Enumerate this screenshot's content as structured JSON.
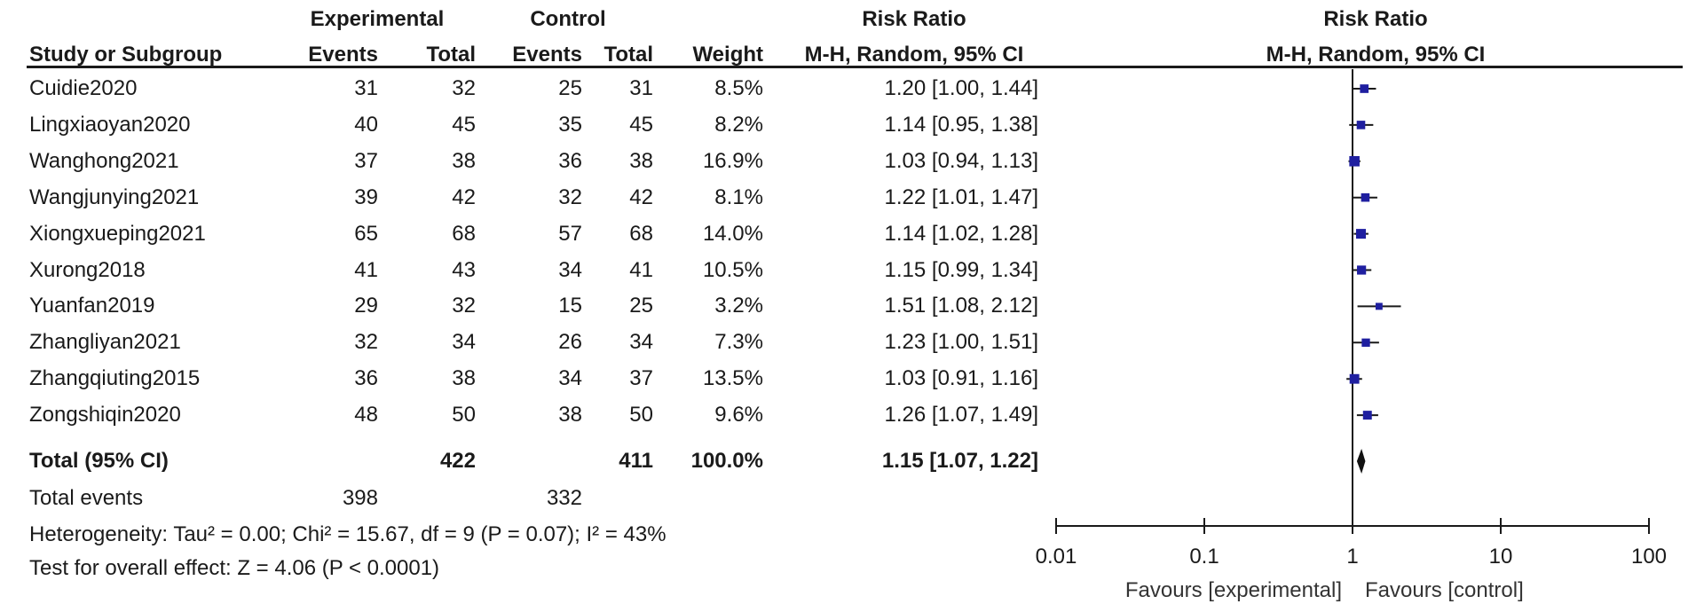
{
  "header": {
    "group1": "Experimental",
    "group2": "Control",
    "rr_table": "Risk Ratio",
    "rr_plot": "Risk Ratio",
    "col_study": "Study or Subgroup",
    "col_events1": "Events",
    "col_total1": "Total",
    "col_events2": "Events",
    "col_total2": "Total",
    "col_weight": "Weight",
    "col_method": "M-H, Random, 95% CI",
    "plot_method": "M-H, Random, 95% CI"
  },
  "studies": [
    {
      "name": "Cuidie2020",
      "e_events": "31",
      "e_total": "32",
      "c_events": "25",
      "c_total": "31",
      "weight": "8.5%",
      "ci_text": "1.20 [1.00, 1.44]"
    },
    {
      "name": "Lingxiaoyan2020",
      "e_events": "40",
      "e_total": "45",
      "c_events": "35",
      "c_total": "45",
      "weight": "8.2%",
      "ci_text": "1.14 [0.95, 1.38]"
    },
    {
      "name": "Wanghong2021",
      "e_events": "37",
      "e_total": "38",
      "c_events": "36",
      "c_total": "38",
      "weight": "16.9%",
      "ci_text": "1.03 [0.94, 1.13]"
    },
    {
      "name": "Wangjunying2021",
      "e_events": "39",
      "e_total": "42",
      "c_events": "32",
      "c_total": "42",
      "weight": "8.1%",
      "ci_text": "1.22 [1.01, 1.47]"
    },
    {
      "name": "Xiongxueping2021",
      "e_events": "65",
      "e_total": "68",
      "c_events": "57",
      "c_total": "68",
      "weight": "14.0%",
      "ci_text": "1.14 [1.02, 1.28]"
    },
    {
      "name": "Xurong2018",
      "e_events": "41",
      "e_total": "43",
      "c_events": "34",
      "c_total": "41",
      "weight": "10.5%",
      "ci_text": "1.15 [0.99, 1.34]"
    },
    {
      "name": "Yuanfan2019",
      "e_events": "29",
      "e_total": "32",
      "c_events": "15",
      "c_total": "25",
      "weight": "3.2%",
      "ci_text": "1.51 [1.08, 2.12]"
    },
    {
      "name": "Zhangliyan2021",
      "e_events": "32",
      "e_total": "34",
      "c_events": "26",
      "c_total": "34",
      "weight": "7.3%",
      "ci_text": "1.23 [1.00, 1.51]"
    },
    {
      "name": "Zhangqiuting2015",
      "e_events": "36",
      "e_total": "38",
      "c_events": "34",
      "c_total": "37",
      "weight": "13.5%",
      "ci_text": "1.03 [0.91, 1.16]"
    },
    {
      "name": "Zongshiqin2020",
      "e_events": "48",
      "e_total": "50",
      "c_events": "38",
      "c_total": "50",
      "weight": "9.6%",
      "ci_text": "1.26 [1.07, 1.49]"
    }
  ],
  "total": {
    "label": "Total (95% CI)",
    "e_total": "422",
    "c_total": "411",
    "weight": "100.0%",
    "ci_text": "1.15 [1.07, 1.22]"
  },
  "total_events": {
    "label": "Total events",
    "e_events": "398",
    "c_events": "332"
  },
  "heterogeneity": "Heterogeneity: Tau² = 0.00; Chi² = 15.67, df = 9 (P = 0.07); I² = 43%",
  "overall_effect": "Test for overall effect: Z = 4.06 (P < 0.0001)",
  "axis": {
    "ticks": [
      "0.01",
      "0.1",
      "1",
      "10",
      "100"
    ],
    "favours_left": "Favours [experimental]",
    "favours_right": "Favours [control]"
  },
  "chart_data": {
    "type": "forest",
    "scale": "log",
    "xlim": [
      0.01,
      100
    ],
    "reference_line": 1,
    "marker_color": "#1f1fa0",
    "studies": [
      {
        "name": "Cuidie2020",
        "rr": 1.2,
        "lo": 1.0,
        "hi": 1.44,
        "weight": 8.5
      },
      {
        "name": "Lingxiaoyan2020",
        "rr": 1.14,
        "lo": 0.95,
        "hi": 1.38,
        "weight": 8.2
      },
      {
        "name": "Wanghong2021",
        "rr": 1.03,
        "lo": 0.94,
        "hi": 1.13,
        "weight": 16.9
      },
      {
        "name": "Wangjunying2021",
        "rr": 1.22,
        "lo": 1.01,
        "hi": 1.47,
        "weight": 8.1
      },
      {
        "name": "Xiongxueping2021",
        "rr": 1.14,
        "lo": 1.02,
        "hi": 1.28,
        "weight": 14.0
      },
      {
        "name": "Xurong2018",
        "rr": 1.15,
        "lo": 0.99,
        "hi": 1.34,
        "weight": 10.5
      },
      {
        "name": "Yuanfan2019",
        "rr": 1.51,
        "lo": 1.08,
        "hi": 2.12,
        "weight": 3.2
      },
      {
        "name": "Zhangliyan2021",
        "rr": 1.23,
        "lo": 1.0,
        "hi": 1.51,
        "weight": 7.3
      },
      {
        "name": "Zhangqiuting2015",
        "rr": 1.03,
        "lo": 0.91,
        "hi": 1.16,
        "weight": 13.5
      },
      {
        "name": "Zongshiqin2020",
        "rr": 1.26,
        "lo": 1.07,
        "hi": 1.49,
        "weight": 9.6
      }
    ],
    "total": {
      "rr": 1.15,
      "lo": 1.07,
      "hi": 1.22
    }
  }
}
